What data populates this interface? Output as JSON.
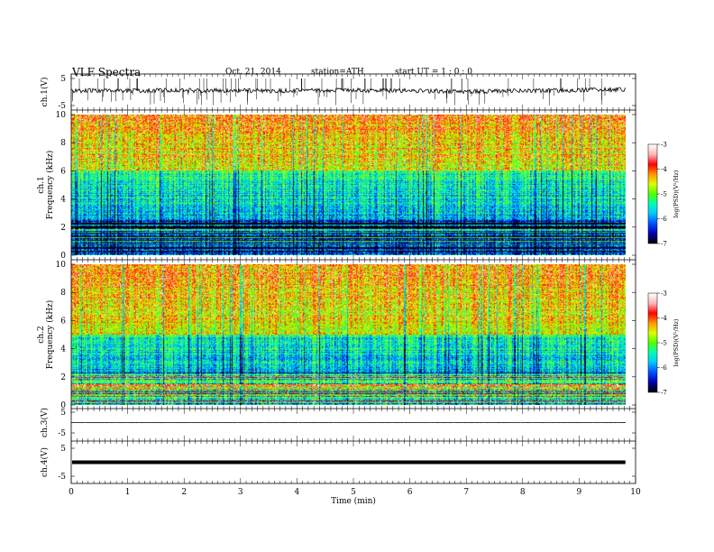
{
  "header": {
    "title": "VLF  Spectra",
    "date": "Oct. 21, 2014",
    "station": "station=ATH",
    "start": "start  UT  =   1  : 0   : 0"
  },
  "chart_data": [
    {
      "type": "line",
      "panel": "ch1-waveform",
      "ylabel": "ch.1(V)",
      "ylim": [
        -5,
        5
      ],
      "yticks": [
        "5",
        "-5"
      ],
      "series": [
        {
          "values": [
            0.4,
            0.6,
            0.5,
            0.7,
            0.5,
            0.6,
            0.4,
            0.5,
            0.7,
            0.6,
            0.5,
            0.4,
            0.2,
            0.3,
            0.5,
            0.6,
            0.8,
            1.0
          ]
        }
      ],
      "color": "#000000"
    },
    {
      "type": "heatmap",
      "panel": "ch1-spectrogram",
      "ylabel": "ch.1 Frequency (kHz)",
      "ylim": [
        0,
        10
      ],
      "yticks": [
        "0",
        "2",
        "4",
        "6",
        "8",
        "10"
      ],
      "colorbar": {
        "label": "log(PSD)(V²/Hz)",
        "range": [
          -7,
          -3
        ],
        "ticks": [
          "-3",
          "-4",
          "-5",
          "-6",
          "-7"
        ]
      }
    },
    {
      "type": "heatmap",
      "panel": "ch2-spectrogram",
      "ylabel": "ch.2 Frequency (kHz)",
      "ylim": [
        0,
        10
      ],
      "yticks": [
        "0",
        "2",
        "4",
        "6",
        "8",
        "10"
      ],
      "colorbar": {
        "label": "log(PSD)(V²/Hz)",
        "range": [
          -7,
          -3
        ],
        "ticks": [
          "-3",
          "-4",
          "-5",
          "-6",
          "-7"
        ]
      }
    },
    {
      "type": "line",
      "panel": "ch3-waveform",
      "ylabel": "ch.3(V)",
      "ylim": [
        -5,
        5
      ],
      "yticks": [
        "5",
        "-5"
      ],
      "series": [
        {
          "values": [
            0,
            0,
            0,
            0,
            0,
            0,
            0,
            0,
            0,
            0
          ]
        }
      ],
      "color": "#000000"
    },
    {
      "type": "line",
      "panel": "ch4-waveform",
      "ylabel": "ch.4(V)",
      "ylim": [
        -5,
        5
      ],
      "yticks": [
        "5",
        "-5"
      ],
      "series": [
        {
          "values": [
            0,
            0,
            0,
            0,
            0,
            0,
            0,
            0,
            0,
            0
          ]
        }
      ],
      "color": "#000000"
    }
  ],
  "x_axis": {
    "label": "Time  (min)",
    "range": [
      0,
      10
    ],
    "ticks": [
      "0",
      "1",
      "2",
      "3",
      "4",
      "5",
      "6",
      "7",
      "8",
      "9",
      "10"
    ],
    "data_end": 9.82
  },
  "colormap": [
    "#000000",
    "#0000b4",
    "#0050ff",
    "#00c8ff",
    "#00ffb4",
    "#50ff00",
    "#dcff00",
    "#ff9600",
    "#ff0000",
    "#ffb4b4",
    "#ffffff"
  ]
}
